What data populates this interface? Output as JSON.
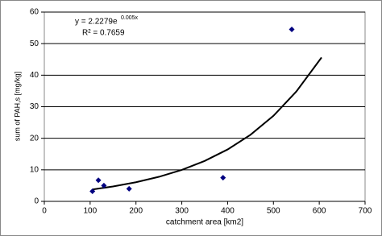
{
  "chart_data": {
    "type": "scatter",
    "x_label": "catchment area [km2]",
    "y_label": "sum of PAH,s [mg/kg]",
    "equation": "y = 2.2279e",
    "equation_exponent": "0.005x",
    "r_squared": "R² = 0.7659",
    "x": [
      105,
      118,
      130,
      185,
      390,
      540
    ],
    "values": [
      3.2,
      6.7,
      5.0,
      4.0,
      7.5,
      54.5
    ],
    "color": "#000080",
    "trendline": {
      "x": [
        105,
        150,
        200,
        250,
        300,
        350,
        400,
        450,
        500,
        550,
        605
      ],
      "values": [
        3.77,
        4.72,
        6.06,
        7.78,
        9.98,
        12.82,
        16.45,
        21.12,
        27.12,
        34.82,
        45.6
      ],
      "color": "#000000"
    },
    "xlim": [
      0,
      700
    ],
    "xticks": [
      0,
      100,
      200,
      300,
      400,
      500,
      600,
      700
    ],
    "ylim": [
      0,
      60
    ],
    "yticks": [
      0,
      10,
      20,
      30,
      40,
      50,
      60
    ],
    "grid": true
  }
}
